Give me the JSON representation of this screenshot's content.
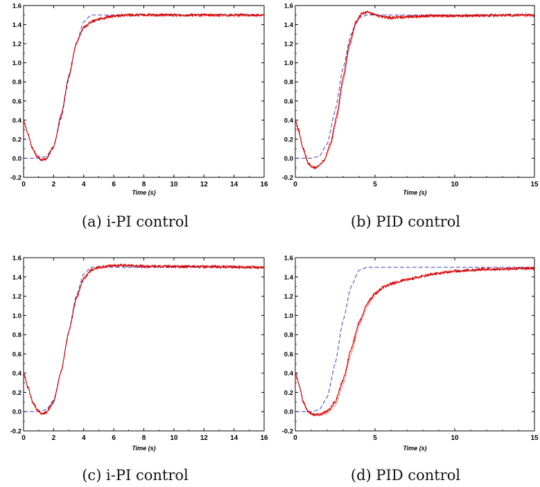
{
  "colors": {
    "reference": "#3a3acc",
    "measured": "#dd0000",
    "model": "#aa1111",
    "axis": "#000000"
  },
  "captions": [
    "(a) i-PI control",
    "(b) PID control",
    "(c) i-PI control",
    "(d) PID control"
  ],
  "chart_data": [
    {
      "type": "line",
      "xlabel": "Time (s)",
      "ylabel": "",
      "xlim": [
        0,
        16
      ],
      "ylim": [
        -0.2,
        1.6
      ],
      "xticks": [
        0,
        2,
        4,
        6,
        8,
        10,
        12,
        14,
        16
      ],
      "yticks": [
        -0.2,
        0.0,
        0.2,
        0.4,
        0.6,
        0.8,
        1.0,
        1.2,
        1.4,
        1.6
      ],
      "series": [
        {
          "style": "dashed-blue",
          "x": [
            0,
            1,
            1.5,
            2,
            2.5,
            3,
            3.5,
            4,
            4.5,
            5,
            16
          ],
          "y": [
            0,
            0,
            0.02,
            0.12,
            0.42,
            0.83,
            1.2,
            1.43,
            1.5,
            1.5,
            1.5
          ]
        },
        {
          "style": "solid-red-noisy",
          "x": [
            0,
            0.3,
            0.6,
            0.9,
            1.2,
            1.5,
            2,
            2.5,
            3,
            3.5,
            4,
            4.5,
            5,
            6,
            7,
            9,
            16
          ],
          "y": [
            0.4,
            0.25,
            0.1,
            0.02,
            -0.02,
            -0.01,
            0.12,
            0.45,
            0.85,
            1.2,
            1.37,
            1.43,
            1.46,
            1.49,
            1.5,
            1.5,
            1.5
          ]
        },
        {
          "style": "dotted-red",
          "x": [
            0,
            0.3,
            0.6,
            0.9,
            1.2,
            1.5,
            2,
            2.5,
            3,
            3.5,
            4,
            4.5,
            5,
            6,
            7,
            9,
            16
          ],
          "y": [
            0.4,
            0.25,
            0.1,
            0.02,
            -0.02,
            -0.01,
            0.12,
            0.45,
            0.85,
            1.2,
            1.37,
            1.43,
            1.46,
            1.49,
            1.5,
            1.5,
            1.5
          ]
        }
      ]
    },
    {
      "type": "line",
      "xlabel": "Time (s)",
      "ylabel": "",
      "xlim": [
        0,
        15
      ],
      "ylim": [
        -0.2,
        1.6
      ],
      "xticks": [
        0,
        5,
        10,
        15
      ],
      "yticks": [
        -0.2,
        0.0,
        0.2,
        0.4,
        0.6,
        0.8,
        1.0,
        1.2,
        1.4,
        1.6
      ],
      "series": [
        {
          "style": "dashed-blue",
          "x": [
            0,
            1,
            1.5,
            2,
            2.5,
            3,
            3.5,
            4,
            4.5,
            15
          ],
          "y": [
            0,
            0,
            0.02,
            0.15,
            0.5,
            0.95,
            1.3,
            1.47,
            1.5,
            1.5
          ]
        },
        {
          "style": "solid-red-noisy",
          "x": [
            0,
            0.2,
            0.5,
            0.8,
            1.1,
            1.4,
            1.8,
            2.2,
            2.6,
            3,
            3.4,
            3.8,
            4.2,
            4.5,
            5,
            5.5,
            6,
            7,
            8,
            15
          ],
          "y": [
            0.4,
            0.3,
            0.1,
            -0.05,
            -0.1,
            -0.09,
            -0.02,
            0.15,
            0.45,
            0.85,
            1.2,
            1.43,
            1.52,
            1.53,
            1.5,
            1.48,
            1.47,
            1.48,
            1.49,
            1.5
          ]
        },
        {
          "style": "dotted-red",
          "x": [
            0,
            0.2,
            0.5,
            0.8,
            1.1,
            1.4,
            1.8,
            2.2,
            2.6,
            3,
            3.4,
            3.8,
            4.2,
            4.5,
            5,
            5.5,
            6,
            7,
            8,
            15
          ],
          "y": [
            0.4,
            0.28,
            0.09,
            -0.06,
            -0.1,
            -0.09,
            -0.03,
            0.12,
            0.4,
            0.8,
            1.16,
            1.41,
            1.51,
            1.53,
            1.5,
            1.49,
            1.48,
            1.49,
            1.5,
            1.5
          ]
        }
      ]
    },
    {
      "type": "line",
      "xlabel": "Time (s)",
      "ylabel": "",
      "xlim": [
        0,
        16
      ],
      "ylim": [
        -0.2,
        1.6
      ],
      "xticks": [
        0,
        2,
        4,
        6,
        8,
        10,
        12,
        14,
        16
      ],
      "yticks": [
        -0.2,
        0.0,
        0.2,
        0.4,
        0.6,
        0.8,
        1.0,
        1.2,
        1.4,
        1.6
      ],
      "series": [
        {
          "style": "dashed-blue",
          "x": [
            0,
            1,
            1.5,
            2,
            2.5,
            3,
            3.5,
            4,
            4.5,
            5,
            16
          ],
          "y": [
            0,
            0,
            0.02,
            0.12,
            0.42,
            0.83,
            1.2,
            1.43,
            1.5,
            1.5,
            1.5
          ]
        },
        {
          "style": "solid-red-noisy",
          "x": [
            0,
            0.3,
            0.6,
            0.9,
            1.2,
            1.5,
            2,
            2.5,
            3,
            3.5,
            4,
            4.5,
            5,
            6,
            7,
            8,
            10,
            16
          ],
          "y": [
            0.4,
            0.25,
            0.1,
            0.02,
            -0.02,
            -0.01,
            0.1,
            0.42,
            0.82,
            1.17,
            1.38,
            1.47,
            1.5,
            1.52,
            1.52,
            1.51,
            1.51,
            1.5
          ]
        },
        {
          "style": "dotted-red",
          "x": [
            0,
            0.3,
            0.6,
            0.9,
            1.2,
            1.5,
            2,
            2.5,
            3,
            3.5,
            4,
            4.5,
            5,
            6,
            7,
            8,
            10,
            16
          ],
          "y": [
            0.4,
            0.25,
            0.1,
            0.02,
            -0.02,
            -0.01,
            0.1,
            0.42,
            0.82,
            1.17,
            1.38,
            1.47,
            1.5,
            1.52,
            1.52,
            1.51,
            1.51,
            1.5
          ]
        }
      ]
    },
    {
      "type": "line",
      "xlabel": "Time (s)",
      "ylabel": "",
      "xlim": [
        0,
        15
      ],
      "ylim": [
        -0.2,
        1.6
      ],
      "xticks": [
        0,
        5,
        10,
        15
      ],
      "yticks": [
        -0.2,
        0.0,
        0.2,
        0.4,
        0.6,
        0.8,
        1.0,
        1.2,
        1.4,
        1.6
      ],
      "series": [
        {
          "style": "dashed-blue",
          "x": [
            0,
            1,
            1.5,
            2,
            2.5,
            3,
            3.5,
            4,
            4.5,
            15
          ],
          "y": [
            0,
            0,
            0.02,
            0.15,
            0.5,
            0.95,
            1.3,
            1.47,
            1.5,
            1.5
          ]
        },
        {
          "style": "solid-red-noisy",
          "x": [
            0,
            0.2,
            0.5,
            0.8,
            1.1,
            1.5,
            2,
            2.5,
            3,
            3.5,
            4,
            4.5,
            5,
            5.5,
            6,
            7,
            8,
            9,
            10,
            11,
            12,
            13,
            14,
            15
          ],
          "y": [
            0.4,
            0.3,
            0.1,
            0.0,
            -0.03,
            -0.03,
            0.0,
            0.1,
            0.33,
            0.65,
            0.93,
            1.12,
            1.23,
            1.29,
            1.33,
            1.37,
            1.41,
            1.44,
            1.46,
            1.47,
            1.48,
            1.48,
            1.49,
            1.49
          ]
        },
        {
          "style": "dotted-red",
          "x": [
            0,
            0.2,
            0.5,
            0.8,
            1.1,
            1.5,
            2,
            2.5,
            3,
            3.5,
            4,
            4.5,
            5,
            5.5,
            6,
            7,
            8,
            9,
            10,
            11,
            12,
            13,
            14,
            15
          ],
          "y": [
            0.4,
            0.3,
            0.1,
            0.0,
            -0.03,
            -0.04,
            -0.02,
            0.06,
            0.28,
            0.6,
            0.89,
            1.09,
            1.21,
            1.28,
            1.32,
            1.37,
            1.41,
            1.44,
            1.46,
            1.47,
            1.48,
            1.48,
            1.49,
            1.49
          ]
        }
      ]
    }
  ]
}
